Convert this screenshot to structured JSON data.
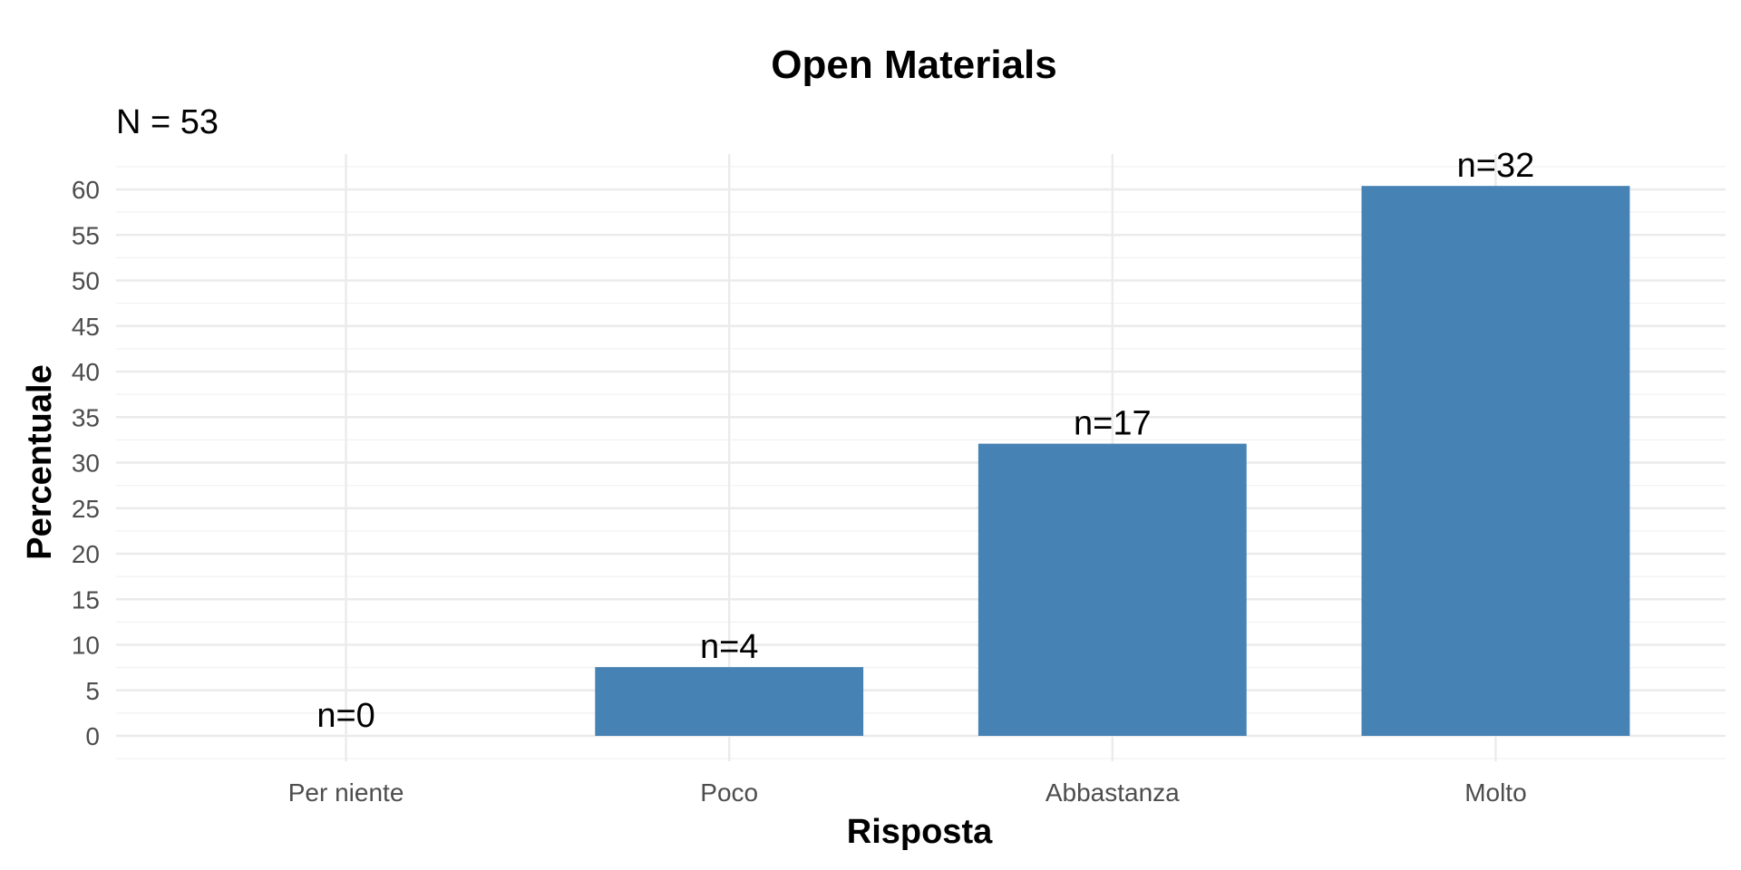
{
  "chart_data": {
    "type": "bar",
    "title": "Open Materials",
    "subtitle": "N = 53",
    "xlabel": "Risposta",
    "ylabel": "Percentuale",
    "categories": [
      "Per niente",
      "Poco",
      "Abbastanza",
      "Molto"
    ],
    "values": [
      0,
      7.55,
      32.08,
      60.38
    ],
    "counts": [
      "n=0",
      "n=4",
      "n=17",
      "n=32"
    ],
    "ylim": [
      0,
      62
    ],
    "yticks": [
      0,
      5,
      10,
      15,
      20,
      25,
      30,
      35,
      40,
      45,
      50,
      55,
      60
    ],
    "bar_color": "#4682b4",
    "grid": true,
    "legend": "none"
  }
}
